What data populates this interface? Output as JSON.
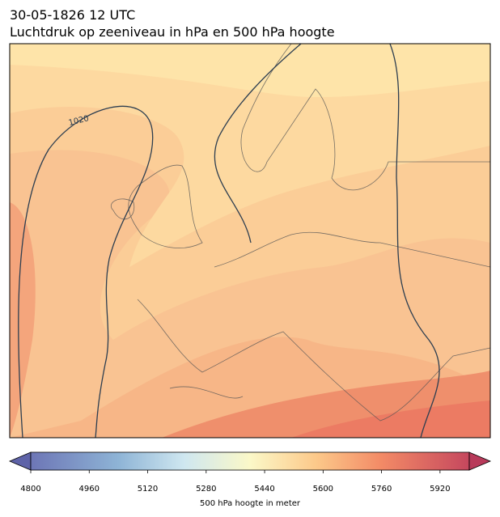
{
  "title_line1": "30-05-1826 12 UTC",
  "title_line2": "Luchtdruk op zeeniveau in hPa en 500 hPa hoogte",
  "contour_label": "1020",
  "colorbar": {
    "lim": [
      4800,
      6000
    ],
    "ticks": [
      4800,
      4960,
      5120,
      5280,
      5440,
      5600,
      5760,
      5920
    ],
    "label": "500 hPa hoogte in meter"
  }
}
